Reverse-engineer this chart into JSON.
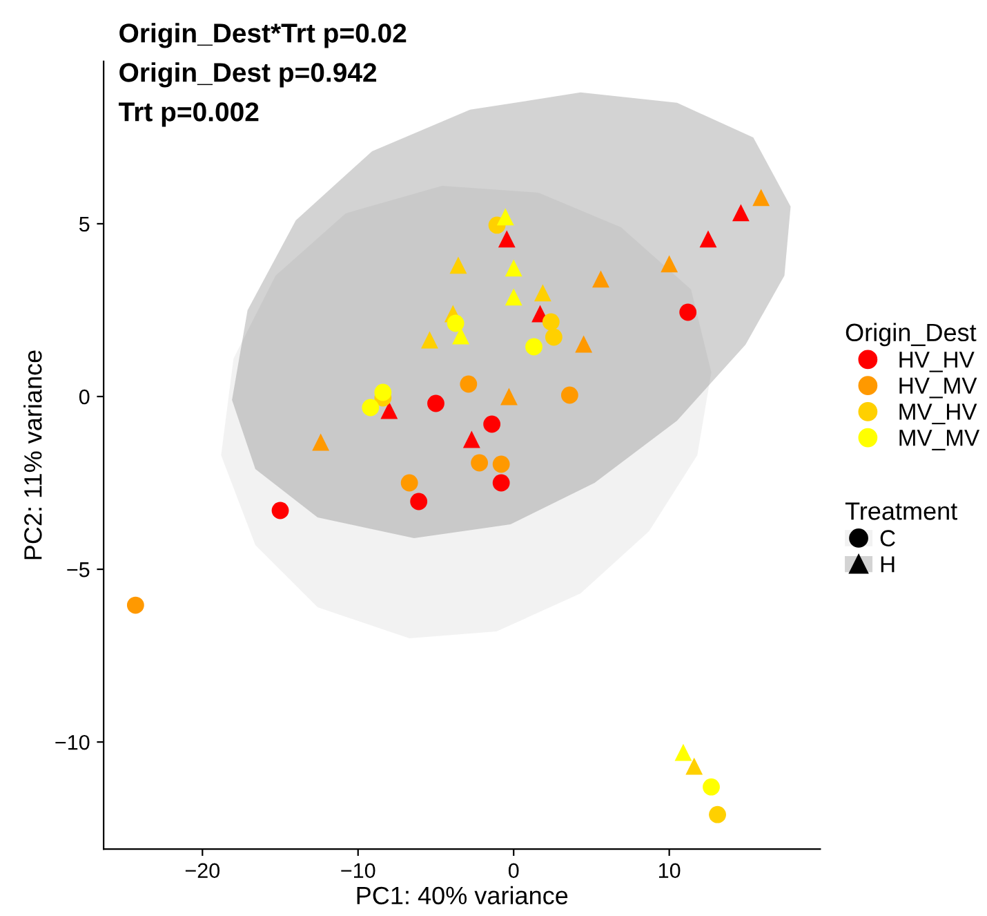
{
  "chart_data": {
    "type": "scatter",
    "annotations": [
      "Origin_Dest*Trt p=0.02",
      "Origin_Dest p=0.942",
      "Trt p=0.002"
    ],
    "xlabel": "PC1: 40% variance",
    "ylabel": "PC2: 11% variance",
    "xlim": [
      -26.35,
      19.7
    ],
    "ylim": [
      -13.1,
      9.7
    ],
    "xticks": [
      {
        "value": -20,
        "label": "−20"
      },
      {
        "value": -10,
        "label": "−10"
      },
      0,
      10
    ],
    "yticks": [
      {
        "value": -10,
        "label": "−10"
      },
      {
        "value": -5,
        "label": "−5"
      },
      0,
      5
    ],
    "grid": false,
    "legend": "right",
    "legend_title": [
      "Origin_Dest",
      "Treatment"
    ],
    "series": [
      {
        "type": "area",
        "name": "C",
        "color": "#cbcbcb",
        "x": [
          -18.8,
          -18.0,
          -15.3,
          -10.8,
          -4.6,
          1.6,
          6.9,
          11.4,
          12.7,
          11.8,
          8.7,
          4.3,
          -1.1,
          -6.7,
          -12.6,
          -16.6
        ],
        "values": [
          -1.7,
          1.1,
          3.5,
          5.3,
          6.1,
          5.9,
          4.9,
          3.1,
          0.7,
          -1.7,
          -3.9,
          -5.7,
          -6.8,
          -7.0,
          -6.1,
          -4.3
        ]
      },
      {
        "type": "area",
        "name": "H",
        "color": "#4f4f4f",
        "x": [
          -18.1,
          -17.1,
          -14.0,
          -9.1,
          -2.8,
          4.3,
          10.5,
          15.4,
          17.8,
          17.4,
          14.9,
          10.5,
          5.2,
          -0.2,
          -6.4,
          -12.6,
          -16.6
        ],
        "values": [
          -0.1,
          2.5,
          5.1,
          7.1,
          8.3,
          8.8,
          8.5,
          7.5,
          5.5,
          3.5,
          1.5,
          -0.7,
          -2.5,
          -3.7,
          -4.1,
          -3.5,
          -2.1
        ]
      },
      {
        "name": "HV_HV",
        "color": "#ff0000",
        "marker": "circle",
        "x": [
          -15.0,
          -6.1,
          -5.0,
          -1.4,
          -0.8,
          11.2
        ],
        "values": [
          -3.3,
          -3.04,
          -0.2,
          -0.8,
          -2.5,
          2.44
        ]
      },
      {
        "color": "#ff0000",
        "marker": "triangle",
        "x": [
          -8.0,
          -2.7,
          -0.44,
          1.7,
          12.5,
          14.6
        ],
        "values": [
          -0.4,
          -1.24,
          4.56,
          2.4,
          4.56,
          5.32
        ]
      },
      {
        "name": "HV_MV",
        "color": "#ff9900",
        "marker": "circle",
        "x": [
          -24.3,
          -6.7,
          -2.9,
          -2.2,
          -0.8,
          3.6
        ],
        "values": [
          -6.04,
          -2.5,
          0.36,
          -1.92,
          -1.96,
          0.04
        ]
      },
      {
        "color": "#ff9900",
        "marker": "triangle",
        "x": [
          -12.4,
          -0.3,
          4.5,
          5.6,
          10.0,
          15.9
        ],
        "values": [
          -1.32,
          0.0,
          1.52,
          3.4,
          3.84,
          5.76
        ]
      },
      {
        "name": "MV_HV",
        "color": "#ffd000",
        "marker": "circle",
        "x": [
          -8.4,
          -1.07,
          2.4,
          2.58,
          13.1
        ],
        "values": [
          -0.04,
          4.96,
          2.16,
          1.72,
          -12.1
        ]
      },
      {
        "color": "#ffd000",
        "marker": "triangle",
        "x": [
          -5.4,
          -3.9,
          -3.56,
          1.87,
          11.6
        ],
        "values": [
          1.64,
          2.4,
          3.8,
          3.0,
          -10.7
        ]
      },
      {
        "name": "MV_MV",
        "color": "#ffff00",
        "marker": "circle",
        "x": [
          -9.2,
          -8.4,
          -3.73,
          1.3,
          12.7
        ],
        "values": [
          -0.32,
          0.12,
          2.12,
          1.44,
          -11.3
        ]
      },
      {
        "color": "#ffff00",
        "marker": "triangle",
        "x": [
          -3.4,
          -0.53,
          0.0,
          0.0,
          10.9
        ],
        "values": [
          1.76,
          5.2,
          3.72,
          2.88,
          -10.3
        ]
      }
    ]
  }
}
